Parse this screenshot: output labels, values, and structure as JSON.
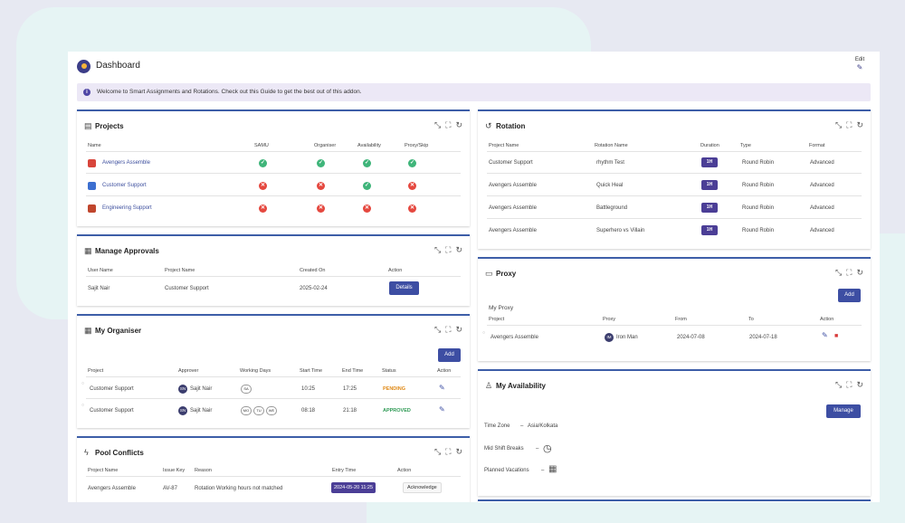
{
  "app": {
    "title": "Dashboard",
    "edit_label": "Edit"
  },
  "banner": {
    "text": "Welcome to Smart Assignments and Rotations. Check out this Guide to get the best out of this addon."
  },
  "projects": {
    "title": "Projects",
    "columns": [
      "Name",
      "SAMU",
      "Organiser",
      "Availability",
      "Proxy/Skip"
    ],
    "rows": [
      {
        "name": "Avengers Assemble",
        "icon_color": "#d8453b",
        "status": [
          "ok",
          "ok",
          "ok",
          "ok"
        ]
      },
      {
        "name": "Customer Support",
        "icon_color": "#3d6fd0",
        "status": [
          "bad",
          "bad",
          "ok",
          "bad"
        ]
      },
      {
        "name": "Engineering Support",
        "icon_color": "#c0462d",
        "status": [
          "bad",
          "bad",
          "bad",
          "bad"
        ]
      }
    ]
  },
  "approvals": {
    "title": "Manage Approvals",
    "columns": [
      "User Name",
      "Project Name",
      "Created On",
      "Action"
    ],
    "rows": [
      {
        "user": "Sajit Nair",
        "project": "Customer Support",
        "created": "2025-02-24",
        "action": "Details"
      }
    ]
  },
  "organiser": {
    "title": "My Organiser",
    "add_label": "Add",
    "columns": [
      "Project",
      "Approver",
      "Working Days",
      "Start Time",
      "End Time",
      "Status",
      "Action"
    ],
    "rows": [
      {
        "project": "Customer Support",
        "approver_initials": "SN",
        "approver": "Sajit Nair",
        "days": [
          "SA"
        ],
        "start": "10:25",
        "end": "17:25",
        "status": "PENDING",
        "status_type": "pending"
      },
      {
        "project": "Customer Support",
        "approver_initials": "SN",
        "approver": "Sajit Nair",
        "days": [
          "MO",
          "TU",
          "WE"
        ],
        "start": "08:18",
        "end": "21:18",
        "status": "APPROVED",
        "status_type": "approved"
      }
    ]
  },
  "conflicts": {
    "title": "Pool Conflicts",
    "columns": [
      "Project Name",
      "Issue Key",
      "Reason",
      "Entry Time",
      "Action"
    ],
    "rows": [
      {
        "project": "Avengers Assemble",
        "issue": "AV-87",
        "reason": "Rotation Working hours not matched",
        "entry": "2024-05-20 11:25",
        "action": "Acknowledge"
      }
    ]
  },
  "rotation": {
    "title": "Rotation",
    "columns": [
      "Project Name",
      "Rotation Name",
      "Duration",
      "Type",
      "Format"
    ],
    "rows": [
      {
        "project": "Customer Support",
        "name": "rhythm Test",
        "duration": "1H",
        "type": "Round Robin",
        "format": "Advanced"
      },
      {
        "project": "Avengers Assemble",
        "name": "Quick Heal",
        "duration": "1H",
        "type": "Round Robin",
        "format": "Advanced"
      },
      {
        "project": "Avengers Assemble",
        "name": "Battleground",
        "duration": "1H",
        "type": "Round Robin",
        "format": "Advanced"
      },
      {
        "project": "Avengers Assemble",
        "name": "Superhero vs Villain",
        "duration": "1H",
        "type": "Round Robin",
        "format": "Advanced"
      }
    ]
  },
  "proxy": {
    "title": "Proxy",
    "add_label": "Add",
    "subtitle": "My Proxy",
    "columns": [
      "Project",
      "Proxy",
      "From",
      "To",
      "Action"
    ],
    "rows": [
      {
        "project": "Avengers Assemble",
        "proxy_initials": "IM",
        "proxy": "Iron Man",
        "from": "2024-07-08",
        "to": "2024-07-18"
      }
    ]
  },
  "availability": {
    "title": "My Availability",
    "manage_label": "Manage",
    "timezone_label": "Time Zone",
    "timezone_value": "Asia/Kolkata",
    "breaks_label": "Mid Shift Breaks",
    "vacations_label": "Planned Vacations",
    "sep": "–"
  }
}
